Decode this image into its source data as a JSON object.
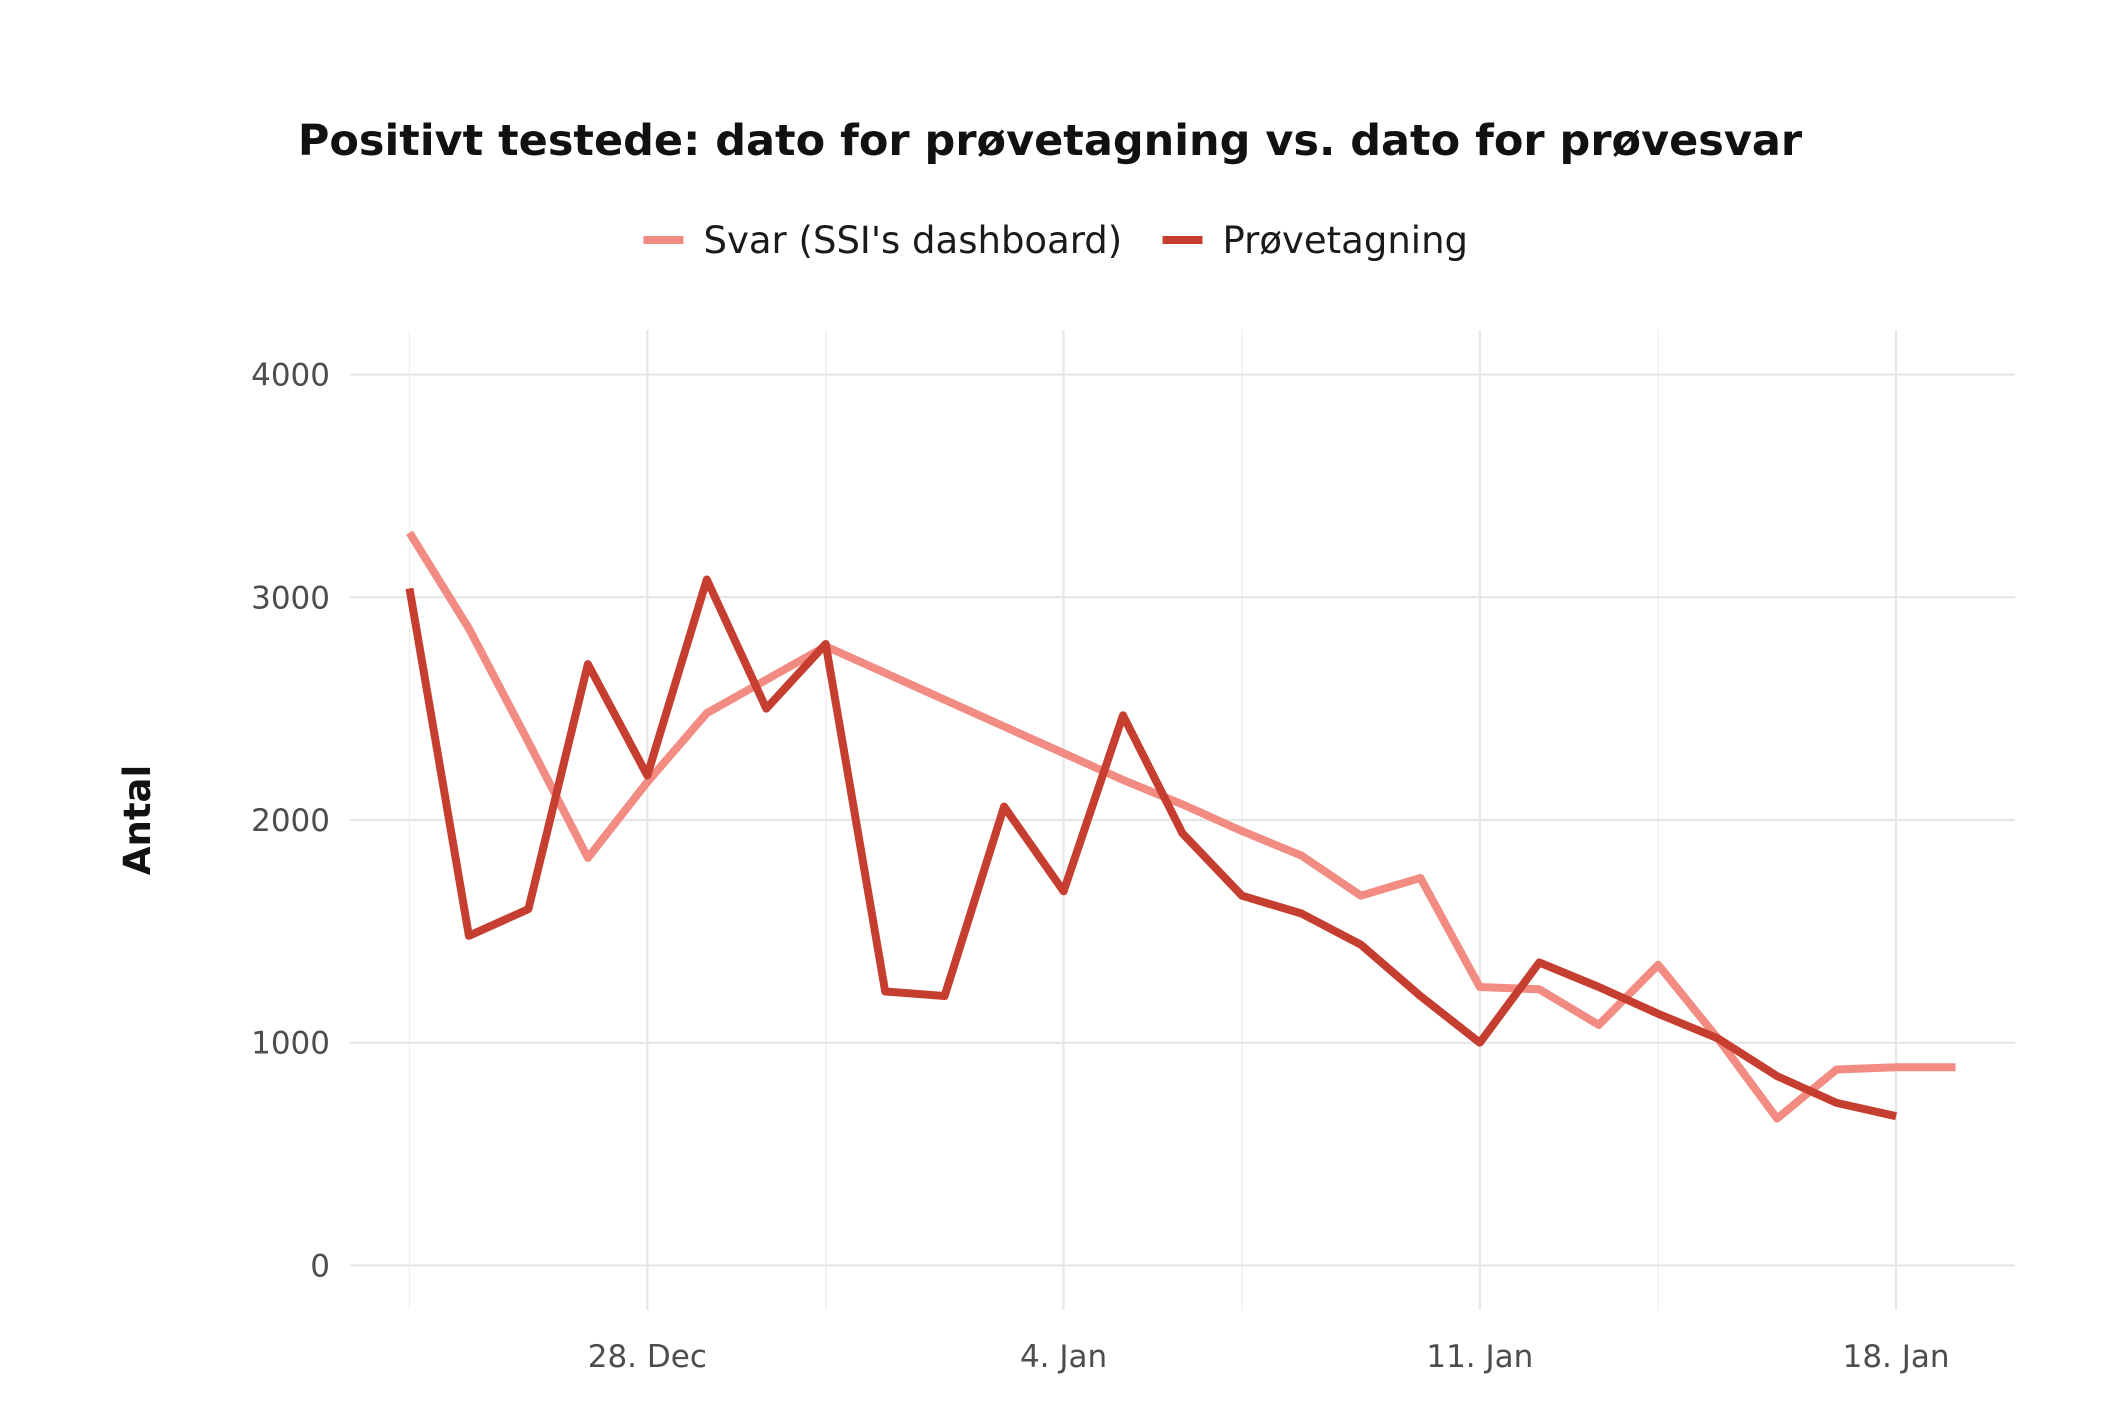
{
  "chart_data": {
    "type": "line",
    "title": "Positivt testede: dato for prøvetagning vs. dato for prøvesvar",
    "xlabel": "",
    "ylabel": "Antal",
    "ylim": [
      -200,
      4200
    ],
    "y_ticks": [
      0,
      1000,
      2000,
      3000,
      4000
    ],
    "y_tick_labels": [
      "0",
      "1000",
      "2000",
      "3000",
      "4000"
    ],
    "x_range": [
      "2020-12-23",
      "2021-01-20"
    ],
    "x_ticks": [
      "2020-12-28",
      "2021-01-04",
      "2021-01-11",
      "2021-01-18"
    ],
    "x_tick_labels": [
      "28. Dec",
      "4. Jan",
      "11. Jan",
      "18. Jan"
    ],
    "x_minor_ticks": [
      "2020-12-24",
      "2020-12-31",
      "2021-01-07",
      "2021-01-14"
    ],
    "grid": true,
    "legend_position": "top",
    "x": [
      "2020-12-24",
      "2020-12-25",
      "2020-12-26",
      "2020-12-27",
      "2020-12-28",
      "2020-12-29",
      "2020-12-30",
      "2020-12-31",
      "2021-01-01",
      "2021-01-02",
      "2021-01-03",
      "2021-01-04",
      "2021-01-05",
      "2021-01-06",
      "2021-01-07",
      "2021-01-08",
      "2021-01-09",
      "2021-01-10",
      "2021-01-11",
      "2021-01-12",
      "2021-01-13",
      "2021-01-14",
      "2021-01-15",
      "2021-01-16",
      "2021-01-17",
      "2021-01-18",
      "2021-01-19"
    ],
    "series": [
      {
        "name": "Svar (SSI's dashboard)",
        "color": "#f28b82",
        "values": [
          3290,
          2860,
          2350,
          1830,
          2170,
          2480,
          2630,
          2780,
          2660,
          2540,
          2420,
          2300,
          2180,
          2070,
          1950,
          1840,
          1660,
          1740,
          1250,
          1240,
          1080,
          1350,
          1020,
          660,
          880,
          890,
          890
        ]
      },
      {
        "name": "Prøvetagning",
        "color": "#c63e30",
        "values": [
          3040,
          1480,
          1600,
          2700,
          2200,
          3080,
          2500,
          2790,
          1230,
          1210,
          2060,
          1680,
          2470,
          1940,
          1660,
          1580,
          1440,
          1210,
          1000,
          1360,
          1250,
          1130,
          1020,
          850,
          730,
          670,
          null
        ]
      }
    ]
  }
}
